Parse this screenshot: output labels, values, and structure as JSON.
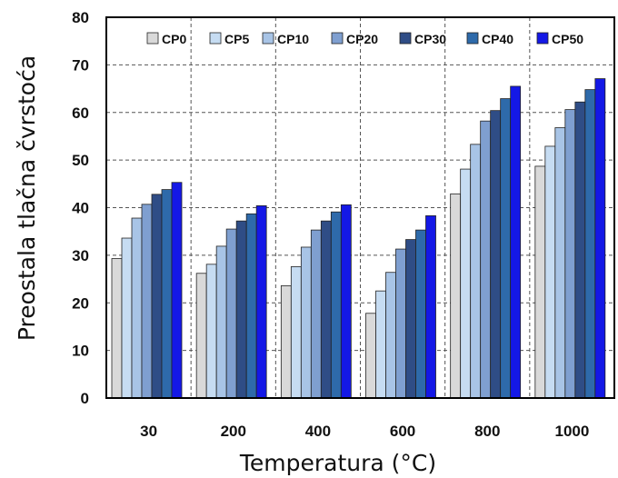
{
  "chart_data": {
    "type": "bar",
    "xlabel": "Temperatura (°C)",
    "ylabel": "Preostala tlačna čvrstoća",
    "ylim": [
      0,
      80
    ],
    "yticks": [
      0,
      10,
      20,
      30,
      40,
      50,
      60,
      70,
      80
    ],
    "grid": true,
    "legend_position": "top",
    "categories": [
      "30",
      "200",
      "400",
      "600",
      "800",
      "1000"
    ],
    "series": [
      {
        "name": "CP0",
        "color": "#d9d9d9",
        "values": [
          29.3,
          26.2,
          23.6,
          17.8,
          42.9,
          48.7
        ]
      },
      {
        "name": "CP5",
        "color": "#c6dcf2",
        "values": [
          33.6,
          28.1,
          27.6,
          22.5,
          48.1,
          52.9
        ]
      },
      {
        "name": "CP10",
        "color": "#a8c4e6",
        "values": [
          37.8,
          31.9,
          31.7,
          26.4,
          53.3,
          56.8
        ]
      },
      {
        "name": "CP20",
        "color": "#7f9fd0",
        "values": [
          40.7,
          35.5,
          35.3,
          31.3,
          58.2,
          60.6
        ]
      },
      {
        "name": "CP30",
        "color": "#2f4d86",
        "values": [
          42.8,
          37.2,
          37.2,
          33.3,
          60.4,
          62.2
        ]
      },
      {
        "name": "CP40",
        "color": "#2e6aaa",
        "values": [
          43.8,
          38.7,
          39.1,
          35.3,
          62.9,
          64.8
        ]
      },
      {
        "name": "CP50",
        "color": "#1418e6",
        "values": [
          45.3,
          40.4,
          40.6,
          38.3,
          65.5,
          67.1
        ]
      }
    ]
  }
}
